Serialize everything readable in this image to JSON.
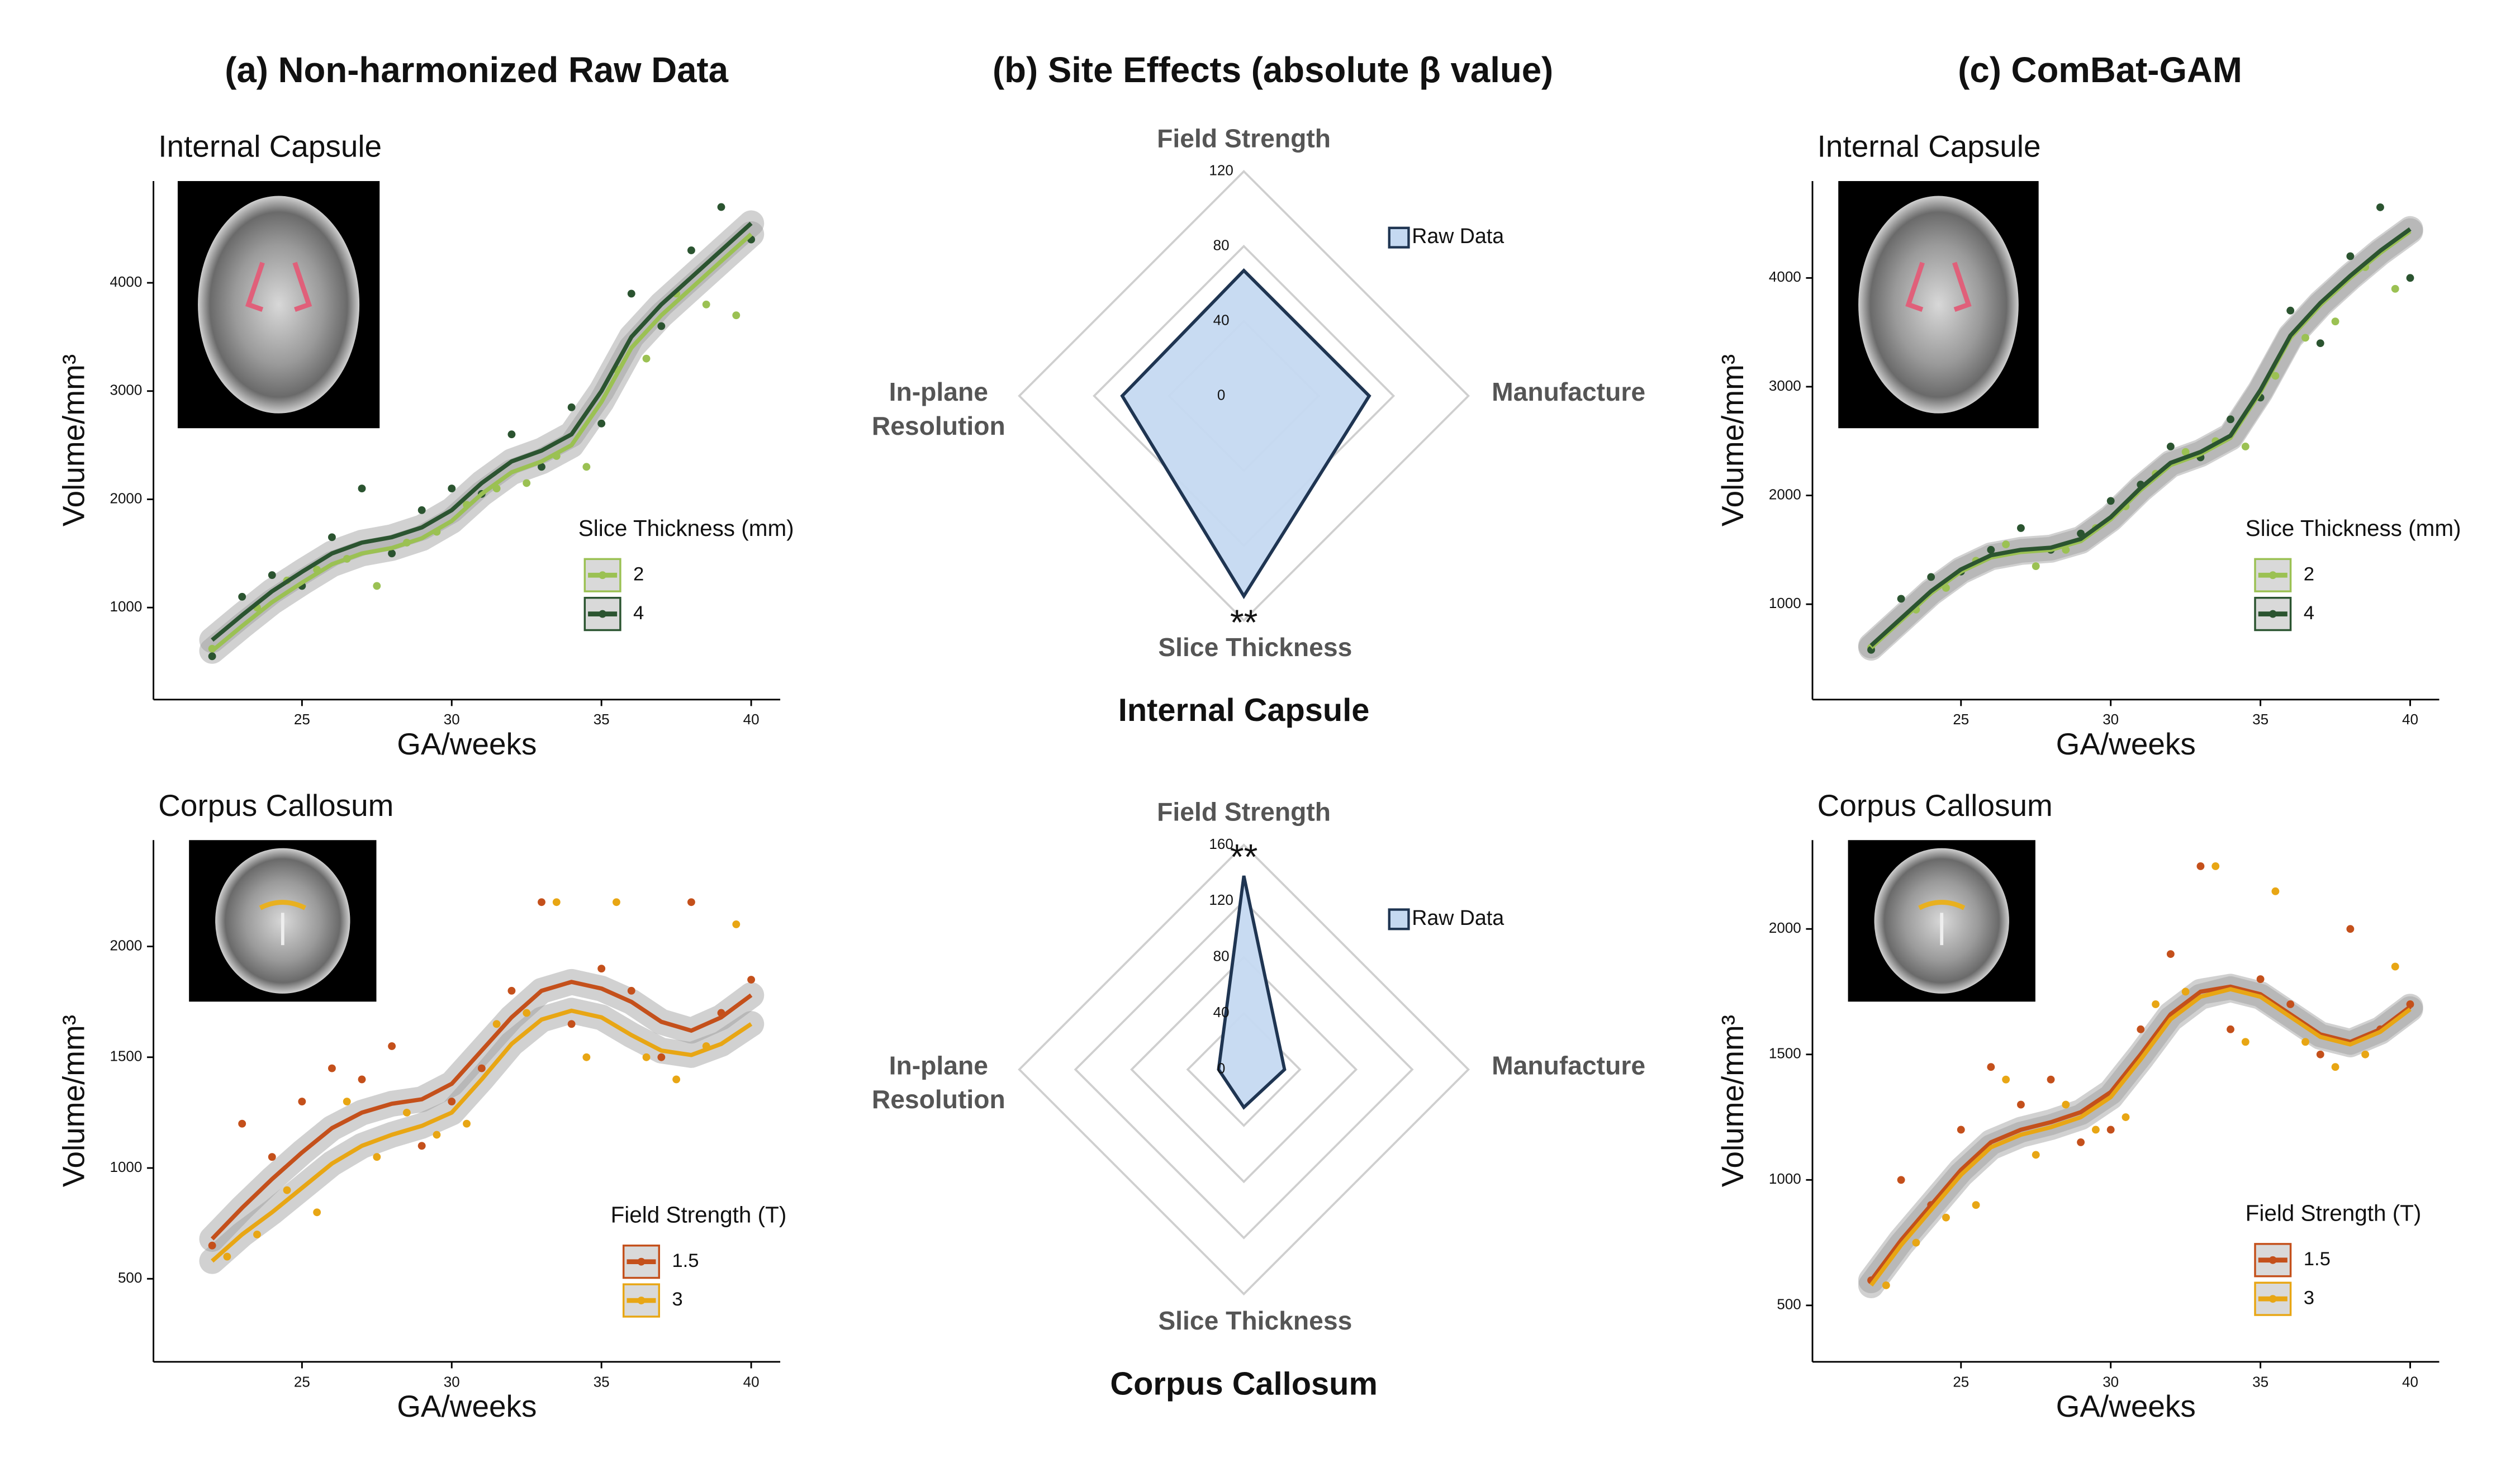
{
  "panels": [
    "(a) Non-harmonized Raw Data",
    "(b) Site Effects (absolute β value)",
    "(c) ComBat-GAM"
  ],
  "chart_data": [
    {
      "type": "scatter",
      "title": "Internal Capsule",
      "x_label": "GA/weeks",
      "y_label": "Volume/mm³",
      "xlim": [
        20.04,
        40.97
      ],
      "xticks": [
        25,
        30,
        35,
        40
      ],
      "ylim": [
        150,
        4940
      ],
      "yticks": [
        1000,
        2000,
        3000,
        4000
      ],
      "legend_title": "Slice Thickness (mm)",
      "fit_x": [
        22,
        23,
        24,
        25,
        26,
        27,
        28,
        29,
        30,
        31,
        32,
        33,
        34,
        35,
        36,
        37,
        38,
        39,
        40
      ],
      "series": [
        {
          "name": "2",
          "color": "#9bc153",
          "x": [
            22,
            23.5,
            24.5,
            25.5,
            26.5,
            27.5,
            28.5,
            29.5,
            30.5,
            31.5,
            32.5,
            33.5,
            34.5,
            35.5,
            36.5,
            37.5,
            38.5,
            39.5
          ],
          "values": [
            620,
            1000,
            1250,
            1350,
            1450,
            1200,
            1600,
            1700,
            1950,
            2100,
            2150,
            2400,
            2300,
            3200,
            3300,
            3900,
            3800,
            3700
          ],
          "fit": [
            600,
            830,
            1050,
            1230,
            1400,
            1500,
            1550,
            1640,
            1800,
            2050,
            2250,
            2350,
            2500,
            2900,
            3400,
            3700,
            3950,
            4200,
            4450
          ]
        },
        {
          "name": "4",
          "color": "#2b5430",
          "x": [
            22,
            23,
            24,
            25,
            26,
            27,
            28,
            29,
            30,
            31,
            32,
            33,
            34,
            35,
            36,
            37,
            38,
            39,
            40
          ],
          "values": [
            550,
            1100,
            1300,
            1200,
            1650,
            2100,
            1500,
            1900,
            2100,
            2050,
            2600,
            2300,
            2850,
            2700,
            3900,
            3600,
            4300,
            4700,
            4400
          ],
          "fit": [
            700,
            930,
            1150,
            1330,
            1500,
            1600,
            1650,
            1740,
            1900,
            2150,
            2350,
            2450,
            2600,
            3000,
            3500,
            3800,
            4050,
            4300,
            4550
          ]
        }
      ]
    },
    {
      "type": "radar",
      "subtitle": "Internal Capsule",
      "categories": [
        "Field Strength",
        "Manufacture",
        "Slice Thickness",
        "In-plane Resolution"
      ],
      "rlim": [
        0,
        120
      ],
      "rticks": [
        0,
        40,
        80,
        120
      ],
      "series": [
        {
          "name": "Raw Data",
          "color": "#c5d9f1",
          "values": [
            67,
            67,
            107,
            65
          ]
        }
      ],
      "significance": [
        null,
        null,
        "**",
        null
      ]
    },
    {
      "type": "scatter",
      "title": "Internal Capsule",
      "x_label": "GA/weeks",
      "y_label": "Volume/mm³",
      "xlim": [
        20.04,
        40.97
      ],
      "xticks": [
        25,
        30,
        35,
        40
      ],
      "ylim": [
        123,
        4891
      ],
      "yticks": [
        1000,
        2000,
        3000,
        4000
      ],
      "legend_title": "Slice Thickness (mm)",
      "fit_x": [
        22,
        23,
        24,
        25,
        26,
        27,
        28,
        29,
        30,
        31,
        32,
        33,
        34,
        35,
        36,
        37,
        38,
        39,
        40
      ],
      "series": [
        {
          "name": "2",
          "color": "#9bc153",
          "x": [
            22,
            23.5,
            24.5,
            25.5,
            26.5,
            27.5,
            28.5,
            29.5,
            30.5,
            31.5,
            32.5,
            33.5,
            34.5,
            35.5,
            36.5,
            37.5,
            38.5,
            39.5
          ],
          "values": [
            600,
            950,
            1150,
            1400,
            1550,
            1350,
            1500,
            1700,
            1900,
            2200,
            2400,
            2500,
            2450,
            3100,
            3450,
            3600,
            4100,
            3900
          ],
          "fit": [
            600,
            850,
            1100,
            1300,
            1430,
            1480,
            1500,
            1580,
            1780,
            2050,
            2280,
            2380,
            2530,
            2950,
            3450,
            3750,
            4000,
            4230,
            4430
          ]
        },
        {
          "name": "4",
          "color": "#2b5430",
          "x": [
            22,
            23,
            24,
            25,
            26,
            27,
            28,
            29,
            30,
            31,
            32,
            33,
            34,
            35,
            36,
            37,
            38,
            39,
            40
          ],
          "values": [
            580,
            1050,
            1250,
            1300,
            1500,
            1700,
            1500,
            1650,
            1950,
            2100,
            2450,
            2350,
            2700,
            2900,
            3700,
            3400,
            4200,
            4650,
            4000
          ],
          "fit": [
            620,
            870,
            1120,
            1320,
            1450,
            1500,
            1520,
            1600,
            1800,
            2070,
            2300,
            2400,
            2550,
            2970,
            3470,
            3770,
            4020,
            4250,
            4450
          ]
        }
      ]
    },
    {
      "type": "scatter",
      "title": "Corpus Callosum",
      "x_label": "GA/weeks",
      "y_label": "Volume/mm³",
      "xlim": [
        20.04,
        40.97
      ],
      "xticks": [
        25,
        30,
        35,
        40
      ],
      "ylim": [
        125,
        2480
      ],
      "yticks": [
        500,
        1000,
        1500,
        2000
      ],
      "legend_title": "Field Strength  (T)",
      "fit_x": [
        22,
        23,
        24,
        25,
        26,
        27,
        28,
        29,
        30,
        31,
        32,
        33,
        34,
        35,
        36,
        37,
        38,
        39,
        40
      ],
      "series": [
        {
          "name": "1.5",
          "color": "#c4501b",
          "x": [
            22,
            23,
            24,
            25,
            26,
            27,
            28,
            29,
            30,
            31,
            32,
            33,
            34,
            35,
            36,
            37,
            38,
            39,
            40
          ],
          "values": [
            650,
            1200,
            1050,
            1300,
            1450,
            1400,
            1550,
            1100,
            1300,
            1450,
            1800,
            2200,
            1650,
            1900,
            1800,
            1500,
            2200,
            1700,
            1850
          ],
          "fit": [
            680,
            820,
            950,
            1070,
            1180,
            1250,
            1290,
            1310,
            1380,
            1530,
            1680,
            1800,
            1840,
            1810,
            1750,
            1660,
            1620,
            1680,
            1780
          ]
        },
        {
          "name": "3",
          "color": "#e8a614",
          "x": [
            22.5,
            23.5,
            24.5,
            25.5,
            26.5,
            27.5,
            28.5,
            29.5,
            30.5,
            31.5,
            32.5,
            33.5,
            34.5,
            35.5,
            36.5,
            37.5,
            38.5,
            39.5
          ],
          "values": [
            600,
            700,
            900,
            800,
            1300,
            1050,
            1250,
            1150,
            1200,
            1650,
            1700,
            2200,
            1500,
            2200,
            1500,
            1400,
            1550,
            2100
          ],
          "fit": [
            580,
            700,
            800,
            910,
            1020,
            1100,
            1150,
            1190,
            1250,
            1400,
            1560,
            1670,
            1710,
            1680,
            1600,
            1530,
            1510,
            1560,
            1650
          ]
        }
      ]
    },
    {
      "type": "radar",
      "subtitle": "Corpus Callosum",
      "categories": [
        "Field Strength",
        "Manufacture",
        "Slice Thickness",
        "In-plane Resolution"
      ],
      "rlim": [
        0,
        160
      ],
      "rticks": [
        0,
        40,
        80,
        120,
        160
      ],
      "series": [
        {
          "name": "Raw Data",
          "color": "#c5d9f1",
          "values": [
            138,
            29,
            27,
            18
          ]
        }
      ],
      "significance": [
        "**",
        null,
        null,
        null
      ]
    },
    {
      "type": "scatter",
      "title": "Corpus Callosum",
      "x_label": "GA/weeks",
      "y_label": "Volume/mm³",
      "xlim": [
        20.04,
        40.97
      ],
      "xticks": [
        25,
        30,
        35,
        40
      ],
      "ylim": [
        275,
        2354
      ],
      "yticks": [
        500,
        1000,
        1500,
        2000
      ],
      "legend_title": "Field Strength  (T)",
      "fit_x": [
        22,
        23,
        24,
        25,
        26,
        27,
        28,
        29,
        30,
        31,
        32,
        33,
        34,
        35,
        36,
        37,
        38,
        39,
        40
      ],
      "series": [
        {
          "name": "1.5",
          "color": "#c4501b",
          "x": [
            22,
            23,
            24,
            25,
            26,
            27,
            28,
            29,
            30,
            31,
            32,
            33,
            34,
            35,
            36,
            37,
            38,
            39,
            40
          ],
          "values": [
            600,
            1000,
            900,
            1200,
            1450,
            1300,
            1400,
            1150,
            1200,
            1600,
            1900,
            2250,
            1600,
            1800,
            1700,
            1500,
            2000,
            1600,
            1700
          ],
          "fit": [
            600,
            760,
            900,
            1040,
            1150,
            1200,
            1230,
            1270,
            1350,
            1500,
            1660,
            1750,
            1770,
            1740,
            1660,
            1580,
            1550,
            1600,
            1690
          ]
        },
        {
          "name": "3",
          "color": "#e8a614",
          "x": [
            22.5,
            23.5,
            24.5,
            25.5,
            26.5,
            27.5,
            28.5,
            29.5,
            30.5,
            31.5,
            32.5,
            33.5,
            34.5,
            35.5,
            36.5,
            37.5,
            38.5,
            39.5
          ],
          "values": [
            580,
            750,
            850,
            900,
            1400,
            1100,
            1300,
            1200,
            1250,
            1700,
            1750,
            2250,
            1550,
            2150,
            1550,
            1450,
            1500,
            1850
          ],
          "fit": [
            580,
            740,
            880,
            1020,
            1130,
            1180,
            1210,
            1250,
            1330,
            1480,
            1640,
            1730,
            1760,
            1730,
            1650,
            1570,
            1540,
            1590,
            1680
          ]
        }
      ]
    }
  ]
}
